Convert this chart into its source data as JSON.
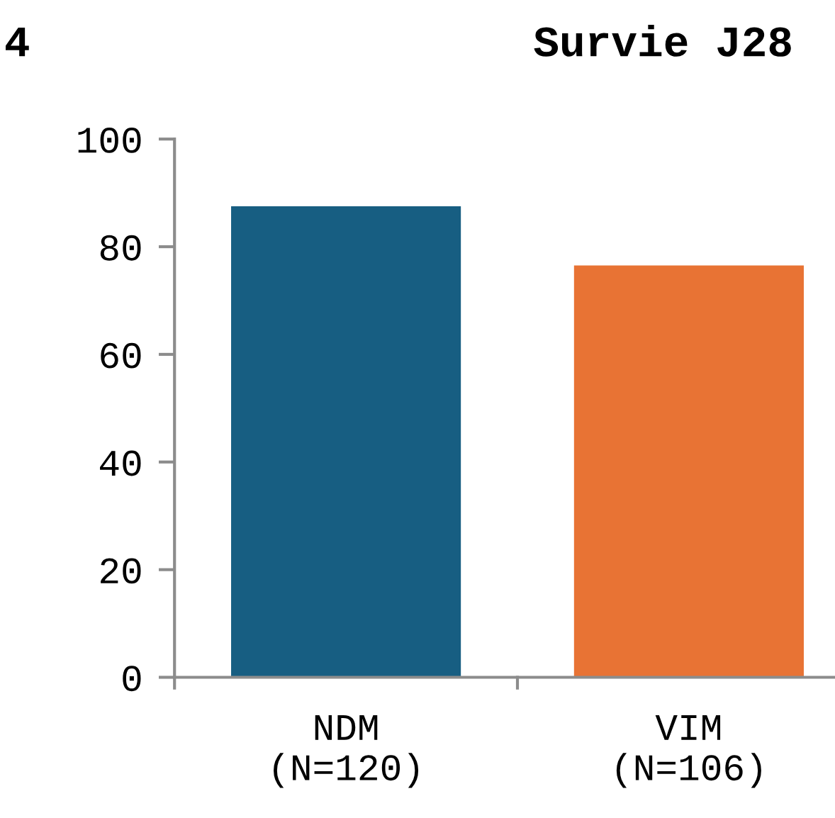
{
  "chart_data": {
    "type": "bar",
    "title": "Survie J28",
    "categories": [
      "NDM\n(N=120)",
      "VIM\n(N=106)"
    ],
    "values": [
      87.5,
      76.5
    ],
    "colors": [
      "#175e82",
      "#e87334"
    ],
    "ylim": [
      0,
      100
    ],
    "yticks": [
      0,
      20,
      40,
      60,
      80,
      100
    ],
    "grid": false,
    "annotations": [
      "4"
    ]
  }
}
